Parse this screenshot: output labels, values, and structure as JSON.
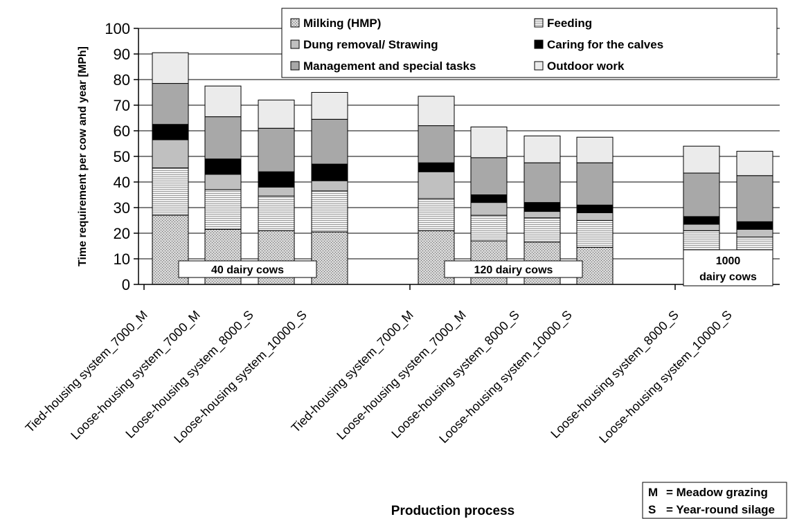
{
  "chart_data": {
    "type": "bar",
    "stacked": true,
    "title": "",
    "xlabel": "Production process",
    "ylabel": "Time requirement per cow and year [MPh]",
    "ylim": [
      0,
      100
    ],
    "yticks": [
      0,
      10,
      20,
      30,
      40,
      50,
      60,
      70,
      80,
      90,
      100
    ],
    "grid": true,
    "legend_position": "top-right",
    "categories": [
      "Tied-housing system_7000_M",
      "Loose-housing system_7000_M",
      "Loose-housing system_8000_S",
      "Loose-housing system_10000_S",
      "Tied-housing system_7000_M",
      "Loose-housing system_7000_M",
      "Loose-housing system_8000_S",
      "Loose-housing system_10000_S",
      "Loose-housing system_8000_S",
      "Loose-housing system_10000_S"
    ],
    "groups": [
      {
        "label": "40 dairy cows",
        "start": 0,
        "end": 3
      },
      {
        "label": "120 dairy cows",
        "start": 4,
        "end": 7
      },
      {
        "label": "1000",
        "label2": "dairy cows",
        "start": 8,
        "end": 9
      }
    ],
    "series": [
      {
        "name": "Milking (HMP)",
        "color": "#d0d0d0",
        "pattern": "dots",
        "values": [
          27,
          21.5,
          21,
          20.5,
          21,
          17,
          16.5,
          14.5,
          0,
          0
        ]
      },
      {
        "name": "Feeding",
        "color": "#e6e6e6",
        "pattern": "hlines",
        "values": [
          18.5,
          15.5,
          13.5,
          16,
          12.5,
          10,
          9.5,
          10.5,
          21,
          18.5
        ]
      },
      {
        "name": "Dung removal/ Strawing",
        "color": "#c0c0c0",
        "pattern": "none",
        "values": [
          11,
          6,
          3.5,
          4,
          10.5,
          5,
          2.5,
          3,
          2.5,
          3
        ]
      },
      {
        "name": "Caring for the calves",
        "color": "#000000",
        "pattern": "none",
        "values": [
          6,
          6,
          6,
          6.5,
          3.5,
          3,
          3.5,
          3,
          3,
          3
        ]
      },
      {
        "name": "Management and special tasks",
        "color": "#a8a8a8",
        "pattern": "none",
        "values": [
          16,
          16.5,
          17,
          17.5,
          14.5,
          14.5,
          15.5,
          16.5,
          17,
          18
        ]
      },
      {
        "name": "Outdoor work",
        "color": "#ebebeb",
        "pattern": "none",
        "values": [
          12,
          12,
          11,
          10.5,
          11.5,
          12,
          10.5,
          10,
          10.5,
          9.5
        ]
      }
    ]
  },
  "abbreviations": [
    {
      "key": "M",
      "text": "= Meadow grazing"
    },
    {
      "key": "S",
      "text": "= Year-round silage"
    }
  ]
}
